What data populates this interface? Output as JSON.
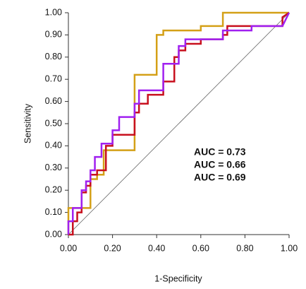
{
  "chart_data": {
    "type": "line",
    "xlabel": "1-Specificity",
    "ylabel": "Sensitivity",
    "xlim": [
      0,
      1
    ],
    "ylim": [
      0,
      1
    ],
    "xticks": [
      {
        "value": 0,
        "label": "0.00"
      },
      {
        "value": 0.2,
        "label": "0.20"
      },
      {
        "value": 0.4,
        "label": "0.40"
      },
      {
        "value": 0.6,
        "label": "0.60"
      },
      {
        "value": 0.8,
        "label": "0.80"
      },
      {
        "value": 1,
        "label": "1.00"
      }
    ],
    "yticks": [
      {
        "value": 0,
        "label": "0.00"
      },
      {
        "value": 0.1,
        "label": "0.10"
      },
      {
        "value": 0.2,
        "label": "0.20"
      },
      {
        "value": 0.3,
        "label": "0.30"
      },
      {
        "value": 0.4,
        "label": "0.40"
      },
      {
        "value": 0.5,
        "label": "0.50"
      },
      {
        "value": 0.6,
        "label": "0.60"
      },
      {
        "value": 0.7,
        "label": "0.70"
      },
      {
        "value": 0.8,
        "label": "0.80"
      },
      {
        "value": 0.9,
        "label": "0.90"
      },
      {
        "value": 1,
        "label": "1.00"
      }
    ],
    "diagonal": true,
    "series": [
      {
        "name": "AUC = 0.73",
        "color": "#d4a017",
        "x": [
          0,
          0,
          0.1,
          0.1,
          0.13,
          0.13,
          0.16,
          0.16,
          0.3,
          0.3,
          0.4,
          0.4,
          0.43,
          0.43,
          0.6,
          0.6,
          0.7,
          0.7,
          1.0
        ],
        "values": [
          0,
          0.12,
          0.12,
          0.25,
          0.25,
          0.27,
          0.27,
          0.38,
          0.38,
          0.72,
          0.72,
          0.9,
          0.9,
          0.92,
          0.92,
          0.94,
          0.94,
          1.0,
          1.0
        ]
      },
      {
        "name": "AUC = 0.66",
        "color": "#c8101e",
        "x": [
          0,
          0.02,
          0.02,
          0.04,
          0.04,
          0.06,
          0.06,
          0.08,
          0.08,
          0.1,
          0.1,
          0.13,
          0.13,
          0.17,
          0.17,
          0.2,
          0.2,
          0.3,
          0.3,
          0.32,
          0.32,
          0.36,
          0.36,
          0.43,
          0.43,
          0.48,
          0.48,
          0.5,
          0.5,
          0.53,
          0.53,
          0.6,
          0.6,
          0.7,
          0.7,
          0.72,
          0.72,
          0.97,
          0.97,
          1.0
        ],
        "values": [
          0,
          0,
          0.06,
          0.06,
          0.1,
          0.1,
          0.19,
          0.19,
          0.22,
          0.22,
          0.27,
          0.27,
          0.29,
          0.29,
          0.4,
          0.4,
          0.45,
          0.45,
          0.55,
          0.55,
          0.59,
          0.59,
          0.63,
          0.63,
          0.69,
          0.69,
          0.8,
          0.8,
          0.83,
          0.83,
          0.86,
          0.86,
          0.88,
          0.88,
          0.9,
          0.9,
          0.94,
          0.94,
          0.98,
          1.0
        ]
      },
      {
        "name": "AUC = 0.69",
        "color": "#a020f0",
        "x": [
          0,
          0,
          0.02,
          0.02,
          0.06,
          0.06,
          0.08,
          0.08,
          0.1,
          0.1,
          0.12,
          0.12,
          0.15,
          0.15,
          0.2,
          0.2,
          0.23,
          0.23,
          0.3,
          0.3,
          0.32,
          0.32,
          0.43,
          0.43,
          0.5,
          0.5,
          0.53,
          0.53,
          0.7,
          0.7,
          0.83,
          0.83,
          0.97,
          1.0
        ],
        "values": [
          0,
          0.06,
          0.06,
          0.12,
          0.12,
          0.2,
          0.2,
          0.24,
          0.24,
          0.29,
          0.29,
          0.35,
          0.35,
          0.41,
          0.41,
          0.47,
          0.47,
          0.53,
          0.53,
          0.59,
          0.59,
          0.65,
          0.65,
          0.77,
          0.77,
          0.85,
          0.85,
          0.88,
          0.88,
          0.92,
          0.92,
          0.94,
          0.94,
          1.0
        ]
      }
    ]
  }
}
